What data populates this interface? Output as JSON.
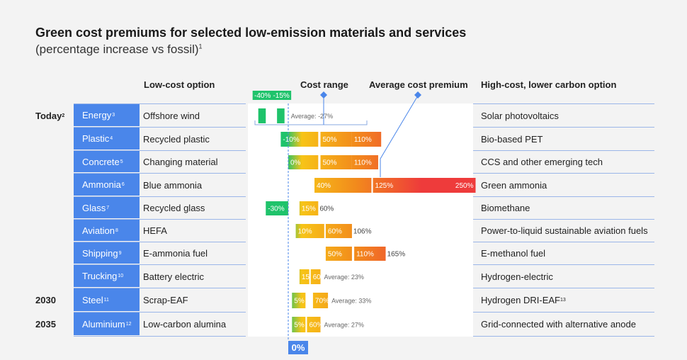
{
  "title": "Green cost premiums for selected low-emission materials and services",
  "subtitle": "(percentage increase vs fossil)",
  "subtitle_note": "1",
  "headers": {
    "low_cost": "Low-cost option",
    "cost_range": "Cost range",
    "average": "Average cost premium",
    "high_cost": "High-cost, lower carbon option"
  },
  "zero_label": "0%",
  "colors": {
    "accent": "#4a86ea",
    "green": "#1fc36b",
    "yellow": "#f7c417",
    "orange": "#f28a1c",
    "red": "#ee3b3b"
  },
  "chart_data": {
    "type": "bar",
    "xlim": [
      -50,
      260
    ],
    "rows": [
      {
        "period": "Today",
        "period_note": "2",
        "category": "Energy",
        "note": "3",
        "low": "Offshore wind",
        "high": "Solar photovoltaics",
        "segments": [
          {
            "from": -40,
            "to": -30,
            "label": "-40%"
          },
          {
            "from": -15,
            "to": -5,
            "label": "-15%"
          }
        ],
        "average": -27,
        "average_label": "Average: -27%"
      },
      {
        "period": "",
        "period_note": "",
        "category": "Plastic",
        "note": "4",
        "low": "Recycled plastic",
        "high": "Bio-based PET",
        "segments": [
          {
            "from": -10,
            "to": 40,
            "label": "-10%"
          },
          {
            "from": 43,
            "to": 85,
            "label": "50%"
          },
          {
            "from": 85,
            "to": 124,
            "label": "110%"
          }
        ]
      },
      {
        "period": "",
        "period_note": "",
        "category": "Concrete",
        "note": "5",
        "low": "Changing material",
        "high": "CCS and other emerging tech",
        "segments": [
          {
            "from": 0,
            "to": 40,
            "label": "0%"
          },
          {
            "from": 43,
            "to": 85,
            "label": "50%"
          },
          {
            "from": 85,
            "to": 120,
            "label": "110%"
          }
        ]
      },
      {
        "period": "",
        "period_note": "",
        "category": "Ammonia",
        "note": "6",
        "low": "Blue ammonia",
        "high": "Green ammonia",
        "segments": [
          {
            "from": 35,
            "to": 111,
            "label": "40%"
          },
          {
            "from": 113,
            "to": 250,
            "label": "125%"
          }
        ],
        "end_label": "250%"
      },
      {
        "period": "",
        "period_note": "",
        "category": "Glass",
        "note": "7",
        "low": "Recycled glass",
        "high": "Biomethane",
        "segments": [
          {
            "from": -30,
            "to": 0,
            "label": "-30%"
          },
          {
            "from": 15,
            "to": 40,
            "label": "15%"
          }
        ],
        "out_label": "60%"
      },
      {
        "period": "",
        "period_note": "",
        "category": "Aviation",
        "note": "8",
        "low": "HEFA",
        "high": "Power-to-liquid sustainable aviation fuels",
        "segments": [
          {
            "from": 10,
            "to": 48,
            "label": "10%"
          },
          {
            "from": 50,
            "to": 85,
            "label": "60%"
          }
        ],
        "out_label": "106%"
      },
      {
        "period": "",
        "period_note": "",
        "category": "Shipping",
        "note": "9",
        "low": "E-ammonia fuel",
        "high": "E-methanol fuel",
        "segments": [
          {
            "from": 50,
            "to": 85,
            "label": "50%"
          },
          {
            "from": 88,
            "to": 130,
            "label": "110%"
          }
        ],
        "out_label": "165%"
      },
      {
        "period": "",
        "period_note": "",
        "category": "Trucking",
        "note": "10",
        "low": "Battery electric",
        "high": "Hydrogen-electric",
        "segments": [
          {
            "from": 15,
            "to": 28,
            "label": "15%"
          },
          {
            "from": 30,
            "to": 43,
            "label": "60%"
          }
        ],
        "average": 23,
        "average_label": "Average: 23%"
      },
      {
        "period": "2030",
        "period_note": "",
        "category": "Steel",
        "note": "11",
        "low": "Scrap-EAF",
        "high": "Hydrogen DRI-EAF",
        "high_note": "13",
        "segments": [
          {
            "from": 5,
            "to": 23,
            "label": "5%"
          },
          {
            "from": 33,
            "to": 53,
            "label": "70%"
          }
        ],
        "average": 33,
        "average_label": "Average: 33%"
      },
      {
        "period": "2035",
        "period_note": "",
        "category": "Aluminium",
        "note": "12",
        "low": "Low-carbon alumina",
        "high": "Grid-connected with alternative anode",
        "segments": [
          {
            "from": 5,
            "to": 23,
            "label": "5%"
          },
          {
            "from": 25,
            "to": 43,
            "label": "60%"
          }
        ],
        "average": 27,
        "average_label": "Average: 27%"
      }
    ]
  }
}
